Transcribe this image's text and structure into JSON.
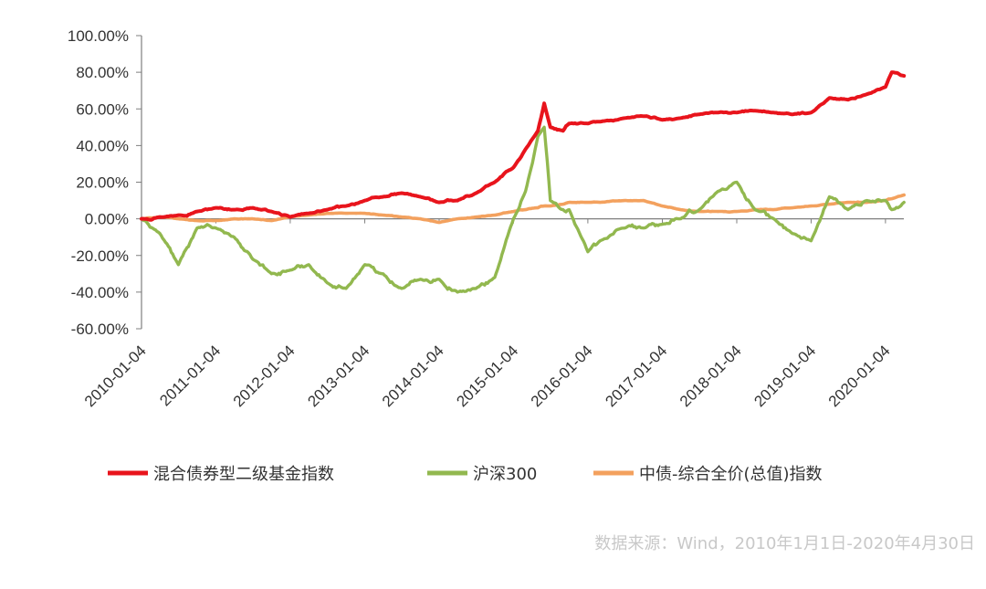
{
  "chart_data": {
    "type": "line",
    "title": "",
    "xlabel": "",
    "ylabel": "",
    "ylim": [
      -60,
      100
    ],
    "yticks": [
      "100.00%",
      "80.00%",
      "60.00%",
      "40.00%",
      "20.00%",
      "0.00%",
      "-20.00%",
      "-40.00%",
      "-60.00%"
    ],
    "xticks": [
      "2010-01-04",
      "2011-01-04",
      "2012-01-04",
      "2013-01-04",
      "2014-01-04",
      "2015-01-04",
      "2016-01-04",
      "2017-01-04",
      "2018-01-04",
      "2019-01-04",
      "2020-01-04"
    ],
    "x": [
      "2010-01",
      "2010-04",
      "2010-07",
      "2010-10",
      "2011-01",
      "2011-04",
      "2011-07",
      "2011-10",
      "2012-01",
      "2012-04",
      "2012-07",
      "2012-10",
      "2013-01",
      "2013-04",
      "2013-07",
      "2013-10",
      "2014-01",
      "2014-04",
      "2014-07",
      "2014-10",
      "2015-01",
      "2015-03",
      "2015-05",
      "2015-06",
      "2015-07",
      "2015-09",
      "2015-10",
      "2016-01",
      "2016-03",
      "2016-07",
      "2016-10",
      "2017-01",
      "2017-04",
      "2017-07",
      "2017-10",
      "2018-01",
      "2018-04",
      "2018-07",
      "2018-10",
      "2019-01",
      "2019-04",
      "2019-07",
      "2019-10",
      "2020-01",
      "2020-02",
      "2020-04"
    ],
    "series": [
      {
        "name": "混合债券型二级基金指数",
        "color": "#e8141c",
        "values": [
          0,
          1,
          2,
          4,
          6,
          5,
          6,
          4,
          1,
          3,
          5,
          7,
          10,
          12,
          14,
          12,
          9,
          10,
          14,
          20,
          28,
          38,
          48,
          63,
          50,
          48,
          52,
          52,
          53,
          55,
          56,
          54,
          55,
          57,
          58,
          58,
          59,
          58,
          57,
          58,
          66,
          65,
          68,
          72,
          80,
          78
        ]
      },
      {
        "name": "沪深300",
        "color": "#92b84f",
        "values": [
          0,
          -8,
          -25,
          -5,
          -5,
          -10,
          -22,
          -30,
          -28,
          -25,
          -35,
          -38,
          -25,
          -30,
          -38,
          -33,
          -33,
          -40,
          -38,
          -32,
          0,
          15,
          45,
          50,
          10,
          5,
          5,
          -18,
          -12,
          -5,
          -5,
          -3,
          0,
          5,
          15,
          20,
          5,
          0,
          -8,
          -12,
          12,
          5,
          10,
          10,
          5,
          9
        ]
      },
      {
        "name": "中债-综合全价(总值)指数",
        "color": "#f3a15e",
        "values": [
          0,
          1,
          0,
          -1,
          -1,
          0,
          0,
          -1,
          1,
          2,
          3,
          3,
          3,
          2,
          1,
          0,
          -2,
          0,
          1,
          2,
          4,
          5,
          6,
          7,
          7,
          8,
          9,
          9,
          9,
          10,
          10,
          7,
          5,
          4,
          4,
          4,
          5,
          5,
          6,
          7,
          8,
          9,
          9,
          10,
          11,
          13
        ]
      }
    ],
    "legend_position": "bottom",
    "grid": false
  },
  "footer": {
    "source": "数据来源：Wind，2010年1月1日-2020年4月30日"
  }
}
